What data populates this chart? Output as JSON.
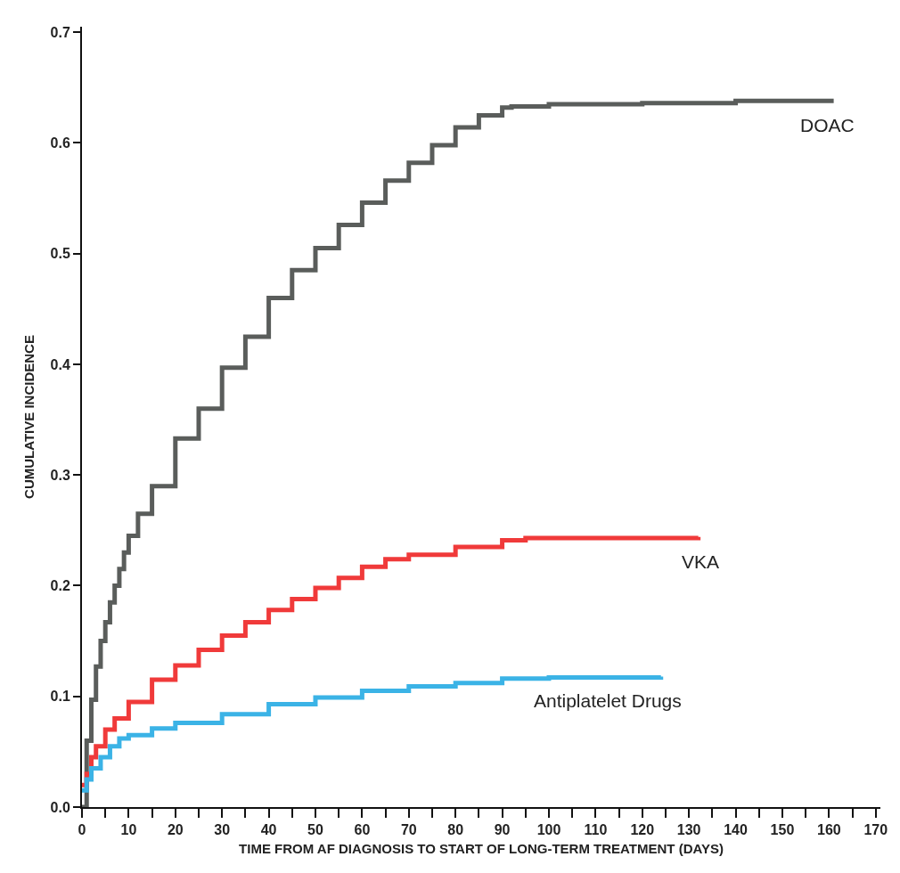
{
  "chart_data": {
    "type": "step",
    "xlabel": "TIME FROM AF DIAGNOSIS TO START OF LONG-TERM TREATMENT (DAYS)",
    "ylabel": "CUMULATIVE INCIDENCE",
    "xlim": [
      0,
      171
    ],
    "ylim": [
      0,
      0.705
    ],
    "xticks": [
      0,
      {
        "value": 5,
        "label": null
      },
      10,
      {
        "value": 15,
        "label": null
      },
      20,
      {
        "value": 25,
        "label": null
      },
      30,
      {
        "value": 35,
        "label": null
      },
      40,
      {
        "value": 45,
        "label": null
      },
      50,
      {
        "value": 55,
        "label": null
      },
      60,
      {
        "value": 65,
        "label": null
      },
      70,
      {
        "value": 75,
        "label": null
      },
      80,
      {
        "value": 85,
        "label": null
      },
      90,
      {
        "value": 95,
        "label": null
      },
      100,
      {
        "value": 105,
        "label": null
      },
      110,
      {
        "value": 115,
        "label": null
      },
      120,
      {
        "value": 125,
        "label": null
      },
      130,
      {
        "value": 135,
        "label": null
      },
      140,
      {
        "value": 145,
        "label": null
      },
      150,
      {
        "value": 155,
        "label": null
      },
      160,
      {
        "value": 165,
        "label": null
      },
      170
    ],
    "yticks": [
      {
        "value": 0,
        "label": "0.0"
      },
      0.1,
      0.2,
      0.3,
      0.4,
      0.5,
      0.6,
      0.7
    ],
    "grid": false,
    "legend": false,
    "series": [
      {
        "name": "DOAC",
        "color": "#5a5d5b",
        "x": [
          0,
          1,
          2,
          3,
          4,
          5,
          6,
          7,
          8,
          9,
          10,
          12,
          15,
          20,
          25,
          30,
          35,
          40,
          45,
          50,
          55,
          60,
          65,
          70,
          75,
          80,
          85,
          90,
          92,
          100,
          120,
          140,
          161
        ],
        "values": [
          0,
          0.06,
          0.097,
          0.127,
          0.15,
          0.167,
          0.185,
          0.2,
          0.215,
          0.23,
          0.245,
          0.265,
          0.29,
          0.333,
          0.36,
          0.397,
          0.425,
          0.46,
          0.485,
          0.505,
          0.526,
          0.546,
          0.566,
          0.582,
          0.598,
          0.614,
          0.625,
          0.632,
          0.633,
          0.635,
          0.636,
          0.638,
          0.638
        ]
      },
      {
        "name": "VKA",
        "color": "#f03a3a",
        "x": [
          0,
          1,
          2,
          3,
          5,
          7,
          10,
          15,
          20,
          25,
          30,
          35,
          40,
          45,
          50,
          55,
          60,
          65,
          70,
          80,
          90,
          95,
          110,
          132
        ],
        "values": [
          0.02,
          0.03,
          0.045,
          0.055,
          0.07,
          0.08,
          0.095,
          0.115,
          0.128,
          0.142,
          0.155,
          0.167,
          0.178,
          0.188,
          0.198,
          0.207,
          0.217,
          0.224,
          0.228,
          0.235,
          0.241,
          0.243,
          0.243,
          0.244
        ]
      },
      {
        "name": "Antiplatelet Drugs",
        "color": "#3bb3e6",
        "x": [
          0,
          1,
          2,
          4,
          6,
          8,
          10,
          15,
          20,
          30,
          40,
          50,
          60,
          70,
          80,
          90,
          100,
          124
        ],
        "values": [
          0.015,
          0.025,
          0.035,
          0.045,
          0.055,
          0.062,
          0.065,
          0.071,
          0.076,
          0.084,
          0.093,
          0.099,
          0.105,
          0.109,
          0.112,
          0.116,
          0.117,
          0.118
        ]
      }
    ]
  }
}
